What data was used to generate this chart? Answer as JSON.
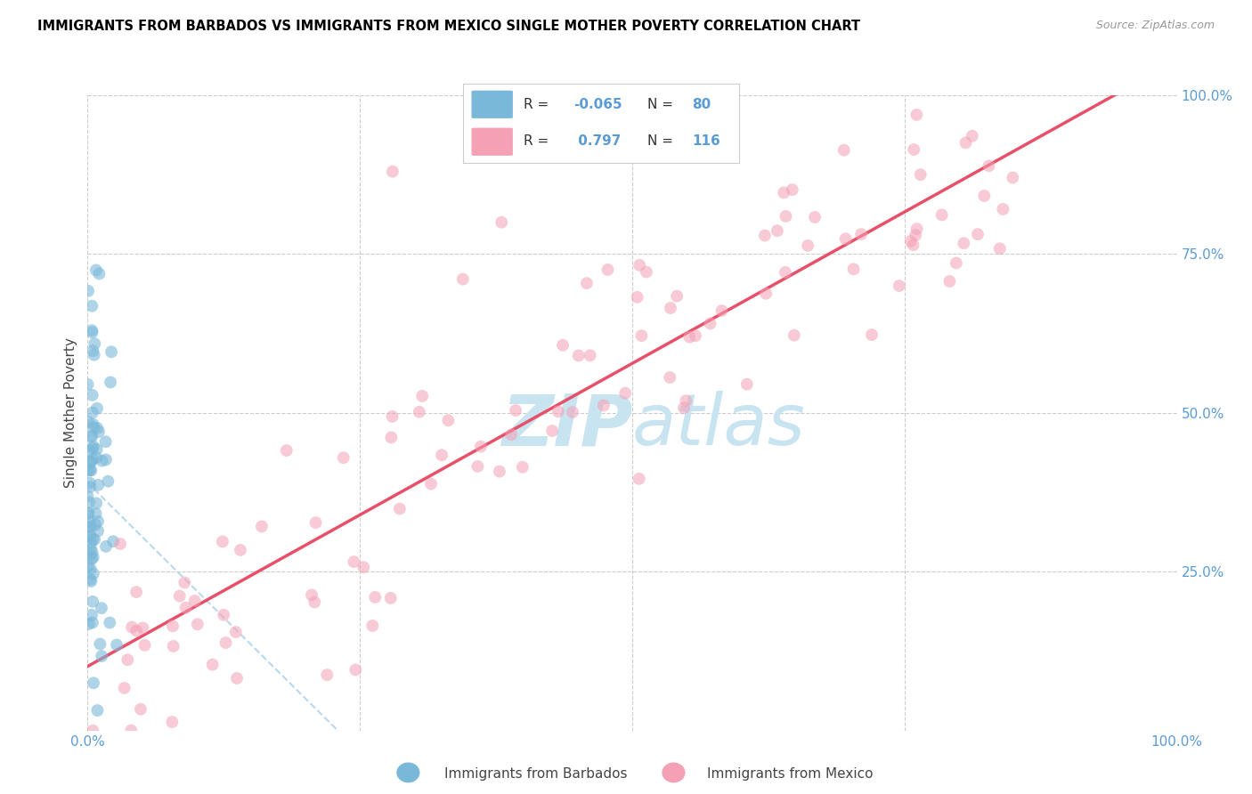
{
  "title": "IMMIGRANTS FROM BARBADOS VS IMMIGRANTS FROM MEXICO SINGLE MOTHER POVERTY CORRELATION CHART",
  "source": "Source: ZipAtlas.com",
  "ylabel": "Single Mother Poverty",
  "xlim": [
    0,
    1
  ],
  "ylim": [
    0,
    1
  ],
  "barbados_R": -0.065,
  "barbados_N": 80,
  "mexico_R": 0.797,
  "mexico_N": 116,
  "barbados_color": "#7ab8d9",
  "mexico_color": "#f4a0b5",
  "barbados_trend_color": "#b8d8ee",
  "mexico_trend_color": "#e8506a",
  "background_color": "#ffffff",
  "grid_color": "#cccccc",
  "title_color": "#000000",
  "source_color": "#999999",
  "tick_color": "#5b9bd5",
  "legend_R_color": "#5b9bd5",
  "legend_N_color": "#5b9bd5",
  "watermark_color": "#c8e4f0",
  "x_ticks": [
    0.0,
    0.25,
    0.5,
    0.75,
    1.0
  ],
  "y_ticks": [
    0.0,
    0.25,
    0.5,
    0.75,
    1.0
  ],
  "y_tick_labels": [
    "",
    "25.0%",
    "50.0%",
    "75.0%",
    "100.0%"
  ]
}
